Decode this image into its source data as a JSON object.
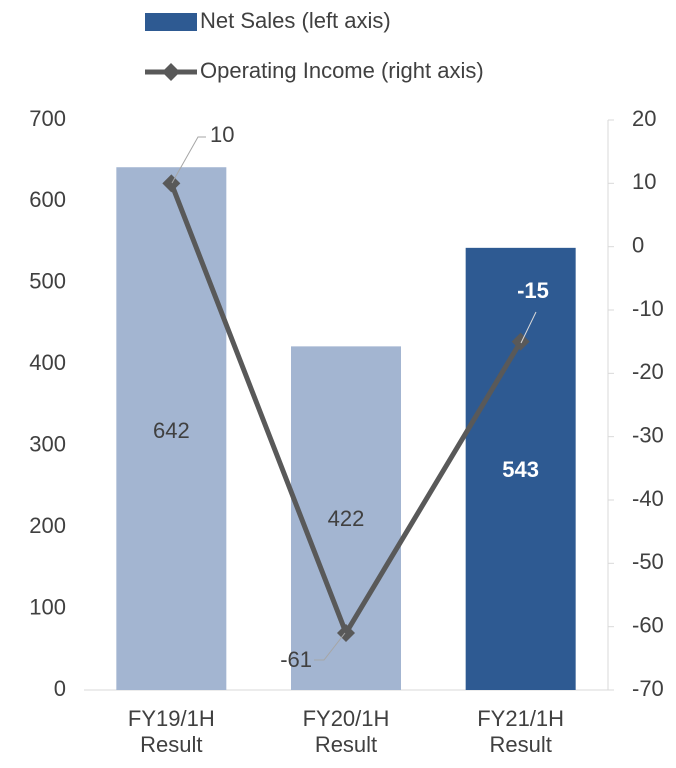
{
  "chart_data": {
    "type": "bar_line",
    "categories": [
      "FY19/1H\nResult",
      "FY20/1H\nResult",
      "FY21/1H\nResult"
    ],
    "series": [
      {
        "name": "Net Sales (left axis)",
        "type": "bar",
        "color": "#2e5a92",
        "colors": [
          "#a3b5d1",
          "#a3b5d1",
          "#2e5a92"
        ],
        "values": [
          642,
          422,
          543
        ]
      },
      {
        "name": "Operating Income (right axis)",
        "type": "line",
        "axis": "y2",
        "color": "#595959",
        "values": [
          10,
          -61,
          -15
        ]
      }
    ],
    "ylim": [
      0,
      700
    ],
    "yticks": [
      0,
      100,
      200,
      300,
      400,
      500,
      600,
      700
    ],
    "y2lim": [
      -70,
      20
    ],
    "y2ticks": [
      -70,
      -60,
      -50,
      -40,
      -30,
      -20,
      -10,
      0,
      10,
      20
    ],
    "legend": "top"
  }
}
